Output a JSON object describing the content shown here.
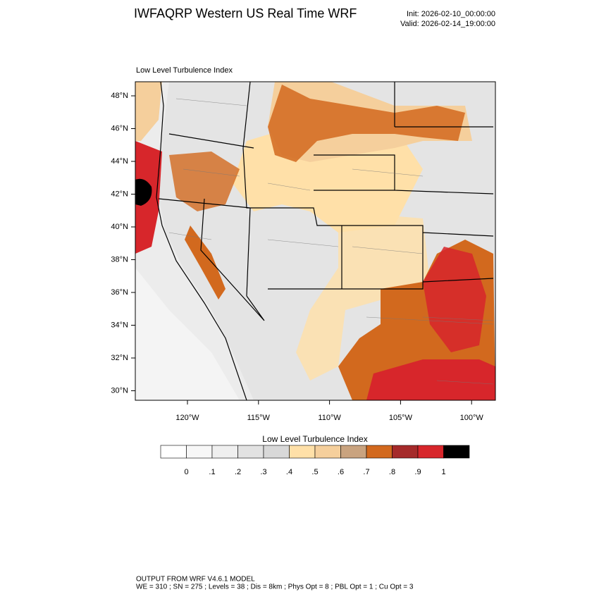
{
  "title": "IWFAQRP Western US Real Time WRF",
  "init": "Init: 2026-02-10_00:00:00",
  "valid": "Valid: 2026-02-14_19:00:00",
  "map": {
    "subtitle": "Low Level Turbulence Index",
    "lat_labels": [
      "48°N",
      "46°N",
      "44°N",
      "42°N",
      "40°N",
      "38°N",
      "36°N",
      "34°N",
      "32°N",
      "30°N"
    ],
    "lon_labels": [
      "120°W",
      "115°W",
      "110°W",
      "105°W",
      "100°W"
    ]
  },
  "colorbar": {
    "title": "Low Level Turbulence Index",
    "labels": [
      "0",
      ".1",
      ".2",
      ".3",
      ".4",
      ".5",
      ".6",
      ".7",
      ".8",
      ".9",
      "1"
    ],
    "colors": [
      "#ffffff",
      "#f7f7f7",
      "#efefef",
      "#e2e2e2",
      "#d8d8d8",
      "#ffe0a8",
      "#f5cf9c",
      "#c9a37f",
      "#d2691e",
      "#a52a2a",
      "#d7262b",
      "#000000"
    ]
  },
  "footer": [
    "OUTPUT FROM WRF V4.6.1 MODEL",
    "WE = 310 ; SN = 275 ; Levels = 38 ; Dis = 8km ; Phys Opt = 8 ; PBL Opt = 1 ; Cu Opt = 3"
  ]
}
